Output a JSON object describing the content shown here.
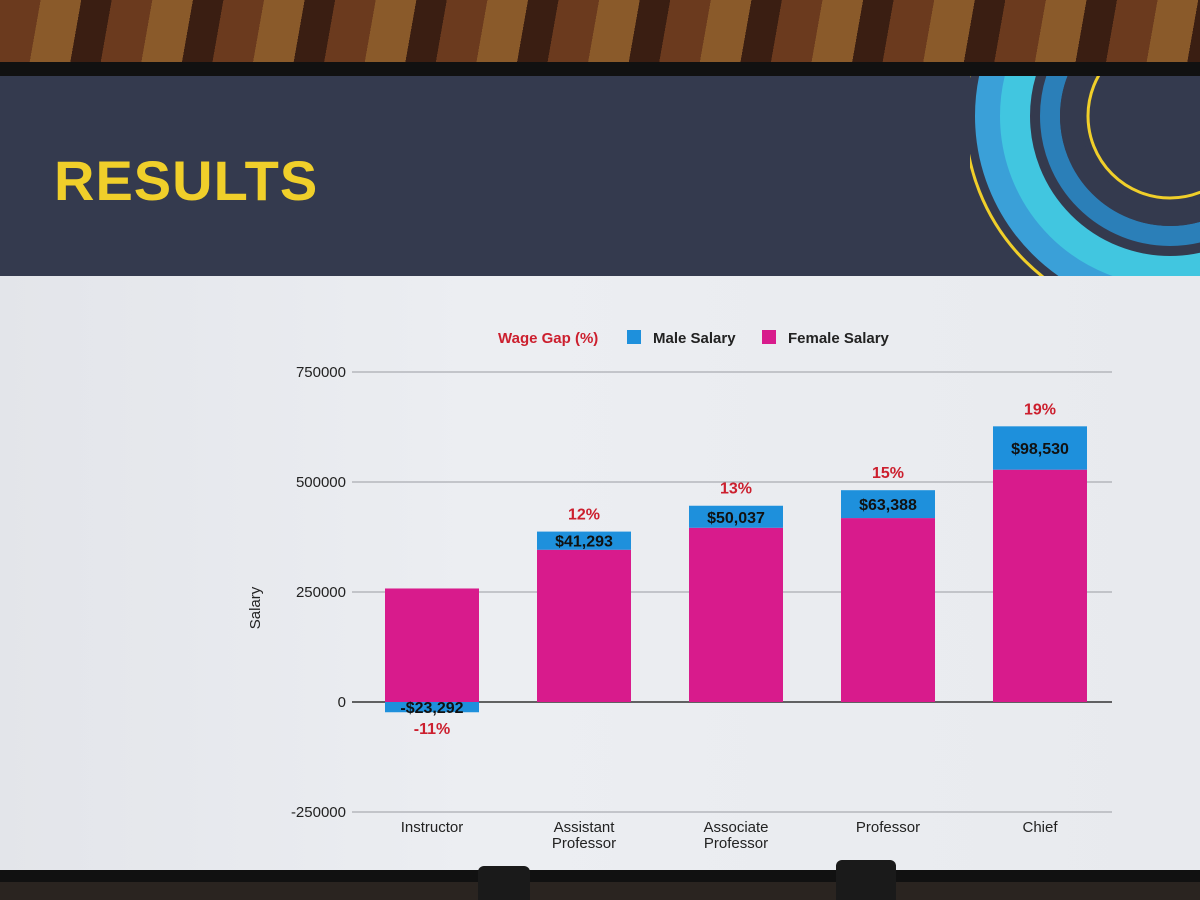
{
  "slide": {
    "title": "RESULTS"
  },
  "chart_data": {
    "type": "bar",
    "stacked": true,
    "categories": [
      "Instructor",
      "Assistant Professor",
      "Associate Professor",
      "Professor",
      "Chief"
    ],
    "category_lines": [
      [
        "Instructor"
      ],
      [
        "Assistant",
        "Professor"
      ],
      [
        "Associate",
        "Professor"
      ],
      [
        "Professor"
      ],
      [
        "Chief"
      ]
    ],
    "series": [
      {
        "name": "Female Salary",
        "color": "#d81b8c",
        "values": [
          258000,
          346000,
          396000,
          418000,
          528000
        ]
      },
      {
        "name": "Male Salary",
        "color": "#1e90dc",
        "values": [
          -23292,
          41293,
          50037,
          63388,
          98530
        ]
      }
    ],
    "gap_labels": [
      "-$23,292",
      "$41,293",
      "$50,037",
      "$63,388",
      "$98,530"
    ],
    "wage_gap_pct": [
      "-11%",
      "12%",
      "13%",
      "15%",
      "19%"
    ],
    "legend": {
      "placement": "top",
      "items": [
        {
          "label": "Wage Gap (%)",
          "color": "#cc1f2e",
          "swatch": false
        },
        {
          "label": "Male Salary",
          "color": "#1e90dc",
          "swatch": true
        },
        {
          "label": "Female Salary",
          "color": "#d81b8c",
          "swatch": true
        }
      ]
    },
    "ylabel": "Salary",
    "ylim": [
      -250000,
      750000
    ],
    "yticks": [
      750000,
      500000,
      250000,
      0,
      -250000
    ],
    "ytick_labels": [
      "750000",
      "500000",
      "250000",
      "0",
      "-250000"
    ],
    "grid": true
  }
}
